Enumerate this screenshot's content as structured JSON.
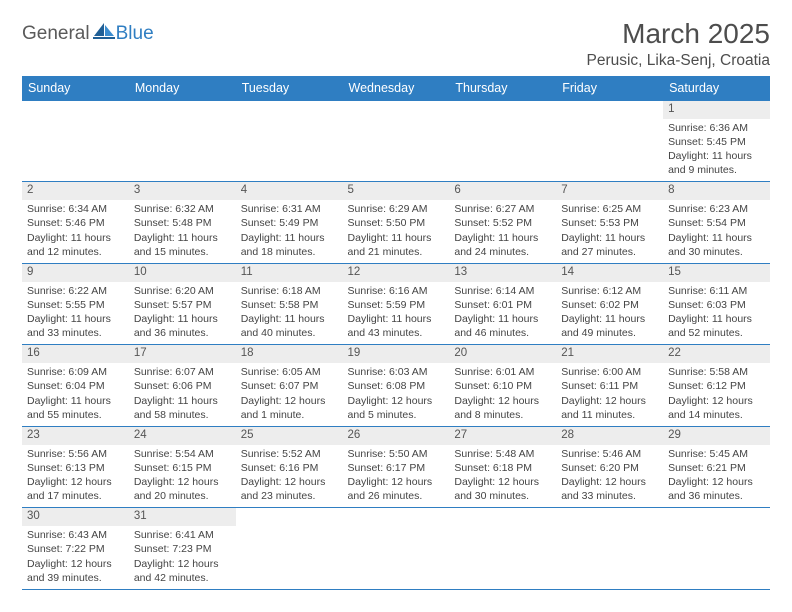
{
  "logo": {
    "part1": "General",
    "part2": "Blue",
    "sail_color": "#2f7ec2"
  },
  "title": "March 2025",
  "location": "Perusic, Lika-Senj, Croatia",
  "colors": {
    "header_bg": "#2f7ec2",
    "header_text": "#ffffff",
    "grid_border": "#2f7ec2",
    "daynum_bg": "#ededed",
    "body_text": "#444444"
  },
  "weekdays": [
    "Sunday",
    "Monday",
    "Tuesday",
    "Wednesday",
    "Thursday",
    "Friday",
    "Saturday"
  ],
  "weeks": [
    [
      null,
      null,
      null,
      null,
      null,
      null,
      {
        "n": "1",
        "sr": "6:36 AM",
        "ss": "5:45 PM",
        "dl": "11 hours and 9 minutes."
      }
    ],
    [
      {
        "n": "2",
        "sr": "6:34 AM",
        "ss": "5:46 PM",
        "dl": "11 hours and 12 minutes."
      },
      {
        "n": "3",
        "sr": "6:32 AM",
        "ss": "5:48 PM",
        "dl": "11 hours and 15 minutes."
      },
      {
        "n": "4",
        "sr": "6:31 AM",
        "ss": "5:49 PM",
        "dl": "11 hours and 18 minutes."
      },
      {
        "n": "5",
        "sr": "6:29 AM",
        "ss": "5:50 PM",
        "dl": "11 hours and 21 minutes."
      },
      {
        "n": "6",
        "sr": "6:27 AM",
        "ss": "5:52 PM",
        "dl": "11 hours and 24 minutes."
      },
      {
        "n": "7",
        "sr": "6:25 AM",
        "ss": "5:53 PM",
        "dl": "11 hours and 27 minutes."
      },
      {
        "n": "8",
        "sr": "6:23 AM",
        "ss": "5:54 PM",
        "dl": "11 hours and 30 minutes."
      }
    ],
    [
      {
        "n": "9",
        "sr": "6:22 AM",
        "ss": "5:55 PM",
        "dl": "11 hours and 33 minutes."
      },
      {
        "n": "10",
        "sr": "6:20 AM",
        "ss": "5:57 PM",
        "dl": "11 hours and 36 minutes."
      },
      {
        "n": "11",
        "sr": "6:18 AM",
        "ss": "5:58 PM",
        "dl": "11 hours and 40 minutes."
      },
      {
        "n": "12",
        "sr": "6:16 AM",
        "ss": "5:59 PM",
        "dl": "11 hours and 43 minutes."
      },
      {
        "n": "13",
        "sr": "6:14 AM",
        "ss": "6:01 PM",
        "dl": "11 hours and 46 minutes."
      },
      {
        "n": "14",
        "sr": "6:12 AM",
        "ss": "6:02 PM",
        "dl": "11 hours and 49 minutes."
      },
      {
        "n": "15",
        "sr": "6:11 AM",
        "ss": "6:03 PM",
        "dl": "11 hours and 52 minutes."
      }
    ],
    [
      {
        "n": "16",
        "sr": "6:09 AM",
        "ss": "6:04 PM",
        "dl": "11 hours and 55 minutes."
      },
      {
        "n": "17",
        "sr": "6:07 AM",
        "ss": "6:06 PM",
        "dl": "11 hours and 58 minutes."
      },
      {
        "n": "18",
        "sr": "6:05 AM",
        "ss": "6:07 PM",
        "dl": "12 hours and 1 minute."
      },
      {
        "n": "19",
        "sr": "6:03 AM",
        "ss": "6:08 PM",
        "dl": "12 hours and 5 minutes."
      },
      {
        "n": "20",
        "sr": "6:01 AM",
        "ss": "6:10 PM",
        "dl": "12 hours and 8 minutes."
      },
      {
        "n": "21",
        "sr": "6:00 AM",
        "ss": "6:11 PM",
        "dl": "12 hours and 11 minutes."
      },
      {
        "n": "22",
        "sr": "5:58 AM",
        "ss": "6:12 PM",
        "dl": "12 hours and 14 minutes."
      }
    ],
    [
      {
        "n": "23",
        "sr": "5:56 AM",
        "ss": "6:13 PM",
        "dl": "12 hours and 17 minutes."
      },
      {
        "n": "24",
        "sr": "5:54 AM",
        "ss": "6:15 PM",
        "dl": "12 hours and 20 minutes."
      },
      {
        "n": "25",
        "sr": "5:52 AM",
        "ss": "6:16 PM",
        "dl": "12 hours and 23 minutes."
      },
      {
        "n": "26",
        "sr": "5:50 AM",
        "ss": "6:17 PM",
        "dl": "12 hours and 26 minutes."
      },
      {
        "n": "27",
        "sr": "5:48 AM",
        "ss": "6:18 PM",
        "dl": "12 hours and 30 minutes."
      },
      {
        "n": "28",
        "sr": "5:46 AM",
        "ss": "6:20 PM",
        "dl": "12 hours and 33 minutes."
      },
      {
        "n": "29",
        "sr": "5:45 AM",
        "ss": "6:21 PM",
        "dl": "12 hours and 36 minutes."
      }
    ],
    [
      {
        "n": "30",
        "sr": "6:43 AM",
        "ss": "7:22 PM",
        "dl": "12 hours and 39 minutes."
      },
      {
        "n": "31",
        "sr": "6:41 AM",
        "ss": "7:23 PM",
        "dl": "12 hours and 42 minutes."
      },
      null,
      null,
      null,
      null,
      null
    ]
  ],
  "labels": {
    "sunrise": "Sunrise: ",
    "sunset": "Sunset: ",
    "daylight": "Daylight: "
  }
}
